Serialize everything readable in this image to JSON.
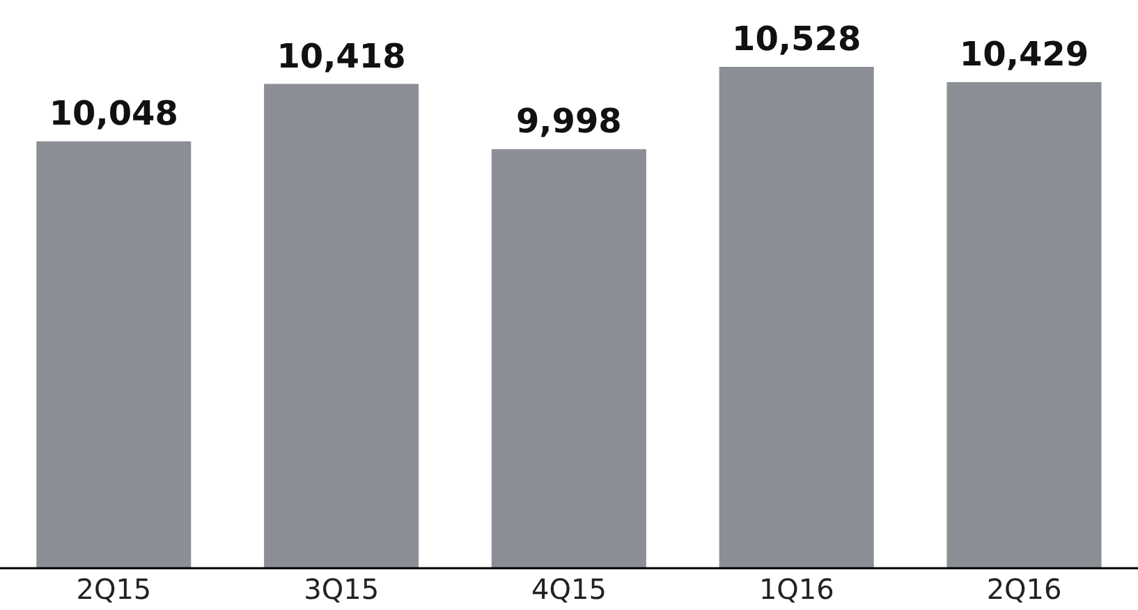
{
  "chart_data": {
    "type": "bar",
    "categories": [
      "2Q15",
      "3Q15",
      "4Q15",
      "1Q16",
      "2Q16"
    ],
    "values": [
      10048,
      10418,
      9998,
      10528,
      10429
    ],
    "color": "#8b8e95",
    "ylim": [
      7300,
      10528
    ],
    "data_labels": true,
    "value_labels": [
      "10,048",
      "10,418",
      "9,998",
      "10,528",
      "10,429"
    ],
    "grid": false,
    "legend": false
  }
}
